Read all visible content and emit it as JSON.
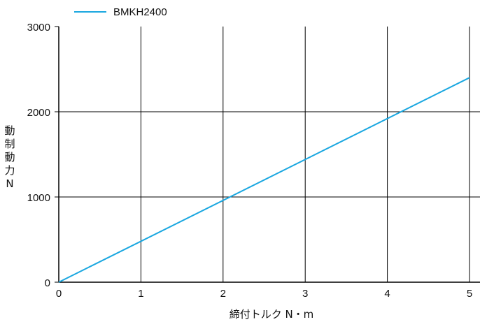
{
  "chart_data": {
    "type": "line",
    "xlabel": "締付トルク N・m",
    "ylabel": "動制動力 N",
    "xlim": [
      0,
      5
    ],
    "ylim": [
      0,
      3000
    ],
    "x_ticks": [
      "0",
      "1",
      "2",
      "3",
      "4",
      "5"
    ],
    "y_ticks": [
      "0",
      "1000",
      "2000",
      "3000"
    ],
    "grid": true,
    "legend_position": "top-left",
    "series": [
      {
        "name": "BMKH2400",
        "color": "#1aa7e0",
        "x": [
          0,
          5
        ],
        "y": [
          0,
          2400
        ]
      }
    ]
  }
}
